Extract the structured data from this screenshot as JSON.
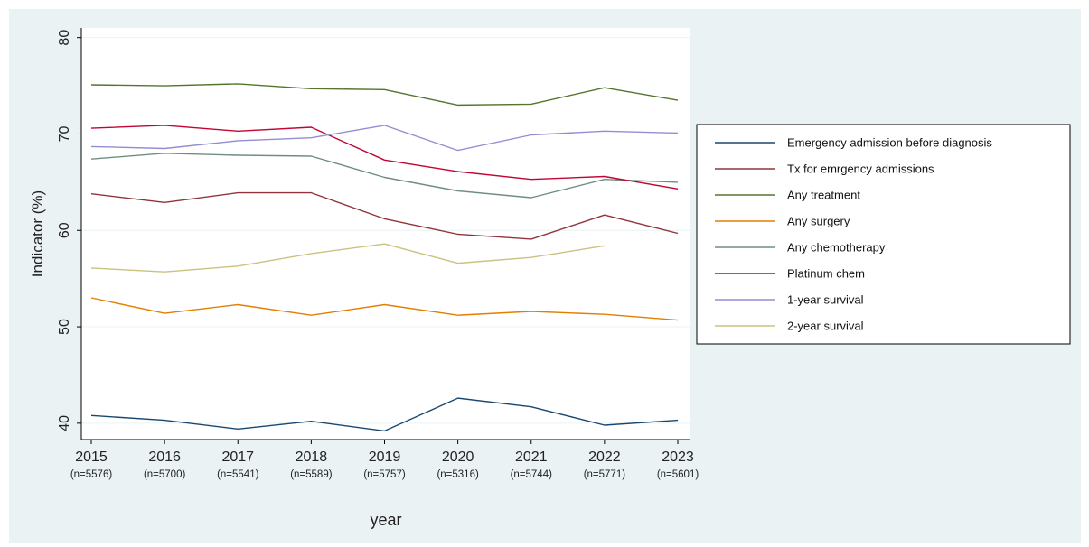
{
  "chart_data": {
    "type": "line",
    "xlabel": "year",
    "ylabel": "Indicator (%)",
    "ylim": [
      38.3,
      81
    ],
    "yticks": [
      40,
      50,
      60,
      70,
      80
    ],
    "grid": true,
    "legend": "right",
    "categories": [
      {
        "year": "2015",
        "n": "(n=5576)"
      },
      {
        "year": "2016",
        "n": "(n=5700)"
      },
      {
        "year": "2017",
        "n": "(n=5541)"
      },
      {
        "year": "2018",
        "n": "(n=5589)"
      },
      {
        "year": "2019",
        "n": "(n=5757)"
      },
      {
        "year": "2020",
        "n": "(n=5316)"
      },
      {
        "year": "2021",
        "n": "(n=5744)"
      },
      {
        "year": "2022",
        "n": "(n=5771)"
      },
      {
        "year": "2023",
        "n": "(n=5601)"
      }
    ],
    "series": [
      {
        "name": "Emergency admission before diagnosis",
        "color": "#1a476f",
        "values": [
          40.8,
          40.3,
          39.4,
          40.2,
          39.2,
          42.6,
          41.7,
          39.8,
          40.3
        ]
      },
      {
        "name": "Tx for emrgency admissions",
        "color": "#90353b",
        "values": [
          63.8,
          62.9,
          63.9,
          63.9,
          61.2,
          59.6,
          59.1,
          61.6,
          59.7
        ]
      },
      {
        "name": "Any treatment",
        "color": "#55752f",
        "values": [
          75.1,
          75.0,
          75.2,
          74.7,
          74.6,
          73.0,
          73.1,
          74.8,
          73.5
        ]
      },
      {
        "name": "Any surgery",
        "color": "#e37e00",
        "values": [
          53.0,
          51.4,
          52.3,
          51.2,
          52.3,
          51.2,
          51.6,
          51.3,
          50.7
        ]
      },
      {
        "name": "Any chemotherapy",
        "color": "#6e8e84",
        "values": [
          67.4,
          68.0,
          67.8,
          67.7,
          65.5,
          64.1,
          63.4,
          65.3,
          65.0
        ]
      },
      {
        "name": "Platinum chem",
        "color": "#c10534",
        "values": [
          70.6,
          70.9,
          70.3,
          70.7,
          67.3,
          66.1,
          65.3,
          65.6,
          64.3
        ]
      },
      {
        "name": "1-year survival",
        "color": "#938dd2",
        "values": [
          68.7,
          68.5,
          69.3,
          69.6,
          70.9,
          68.3,
          69.9,
          70.3,
          70.1
        ]
      },
      {
        "name": "2-year survival",
        "color": "#cac27e",
        "values": [
          56.1,
          55.7,
          56.3,
          57.6,
          58.6,
          56.6,
          57.2,
          58.4,
          null
        ]
      }
    ]
  }
}
